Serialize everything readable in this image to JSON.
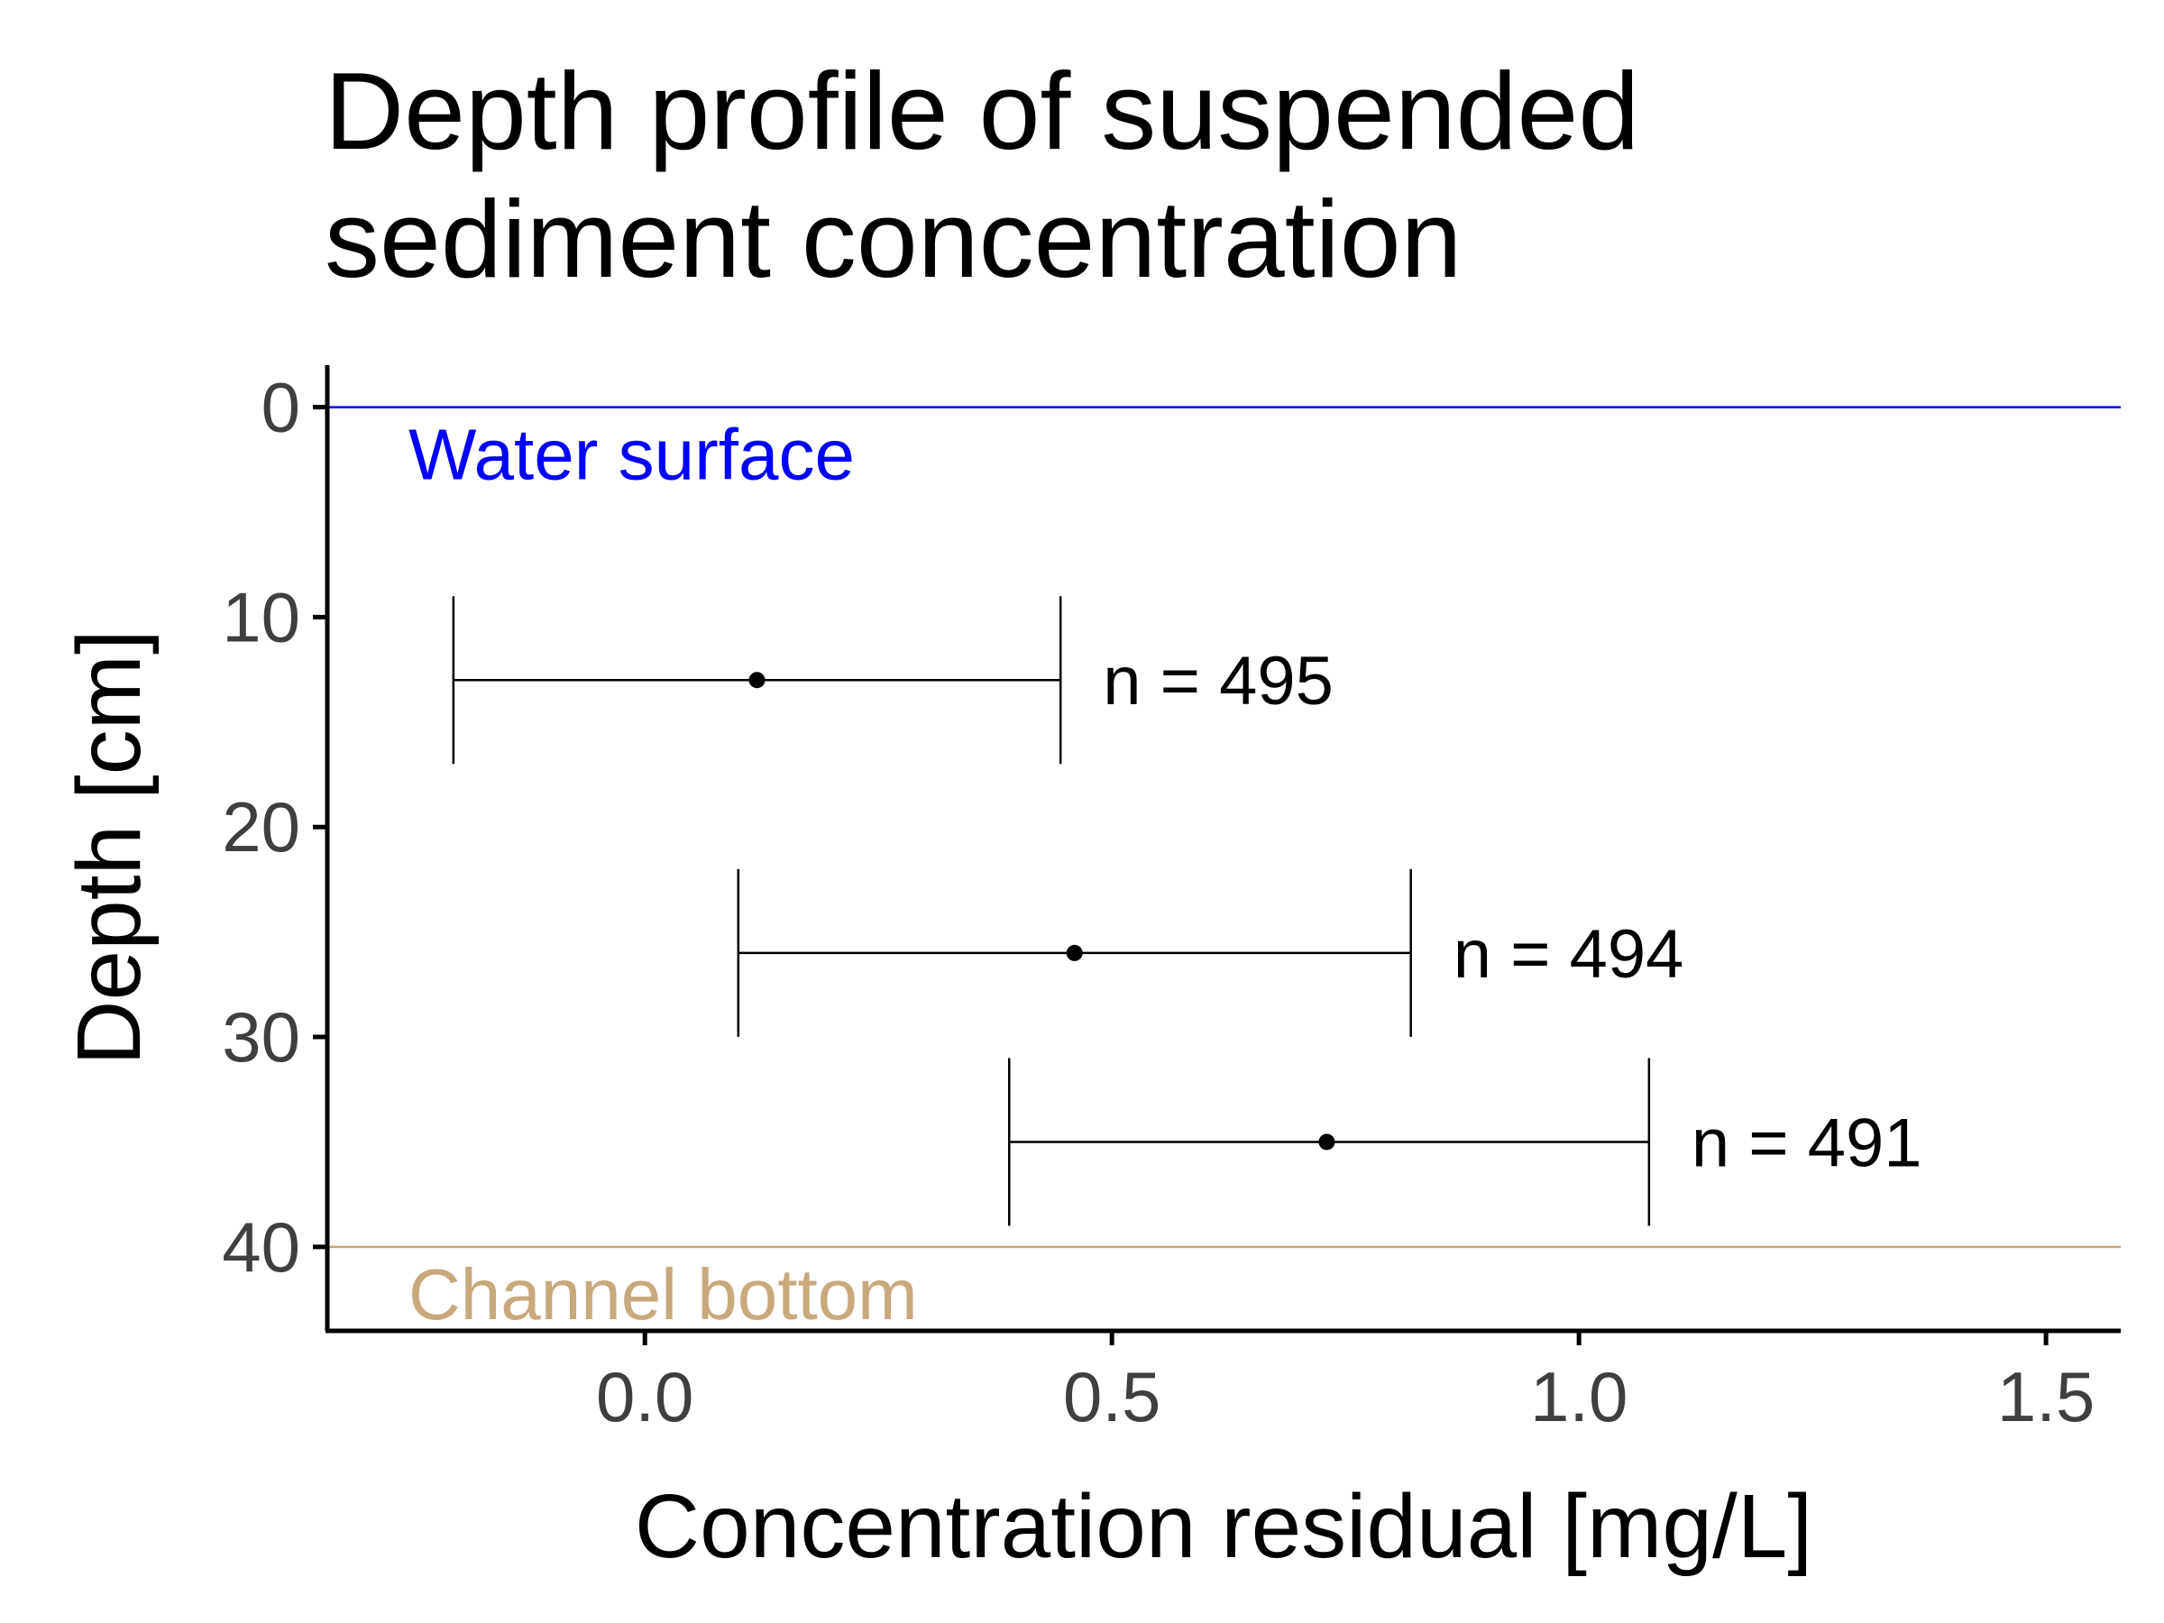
{
  "chart_data": {
    "type": "errorbar",
    "title": "Depth profile of suspended\nsediment concentration",
    "xlabel": "Concentration residual [mg/L]",
    "ylabel": "Depth [cm]",
    "xlim": [
      -0.34,
      1.58
    ],
    "ylim": [
      44,
      -2
    ],
    "x_ticks": [
      0.0,
      0.5,
      1.0,
      1.5
    ],
    "x_tick_labels": [
      "0.0",
      "0.5",
      "1.0",
      "1.5"
    ],
    "y_ticks": [
      0,
      10,
      20,
      30,
      40
    ],
    "y_tick_labels": [
      "0",
      "10",
      "20",
      "30",
      "40"
    ],
    "y_reversed": true,
    "grid": false,
    "points": [
      {
        "depth": 13,
        "mean": 0.12,
        "low": -0.205,
        "high": 0.445,
        "label": "n = 495"
      },
      {
        "depth": 26,
        "mean": 0.46,
        "low": 0.1,
        "high": 0.82,
        "label": "n = 494"
      },
      {
        "depth": 35,
        "mean": 0.73,
        "low": 0.39,
        "high": 1.075,
        "label": "n = 491"
      }
    ],
    "reference_lines": [
      {
        "depth": 0,
        "label": "Water surface",
        "color": "#0000ff"
      },
      {
        "depth": 40,
        "label": "Channel bottom",
        "color": "#c8a97e"
      }
    ],
    "colors": {
      "marks": "#000000",
      "axis": "#000000",
      "tick_labels": "#3f3f3f"
    }
  }
}
